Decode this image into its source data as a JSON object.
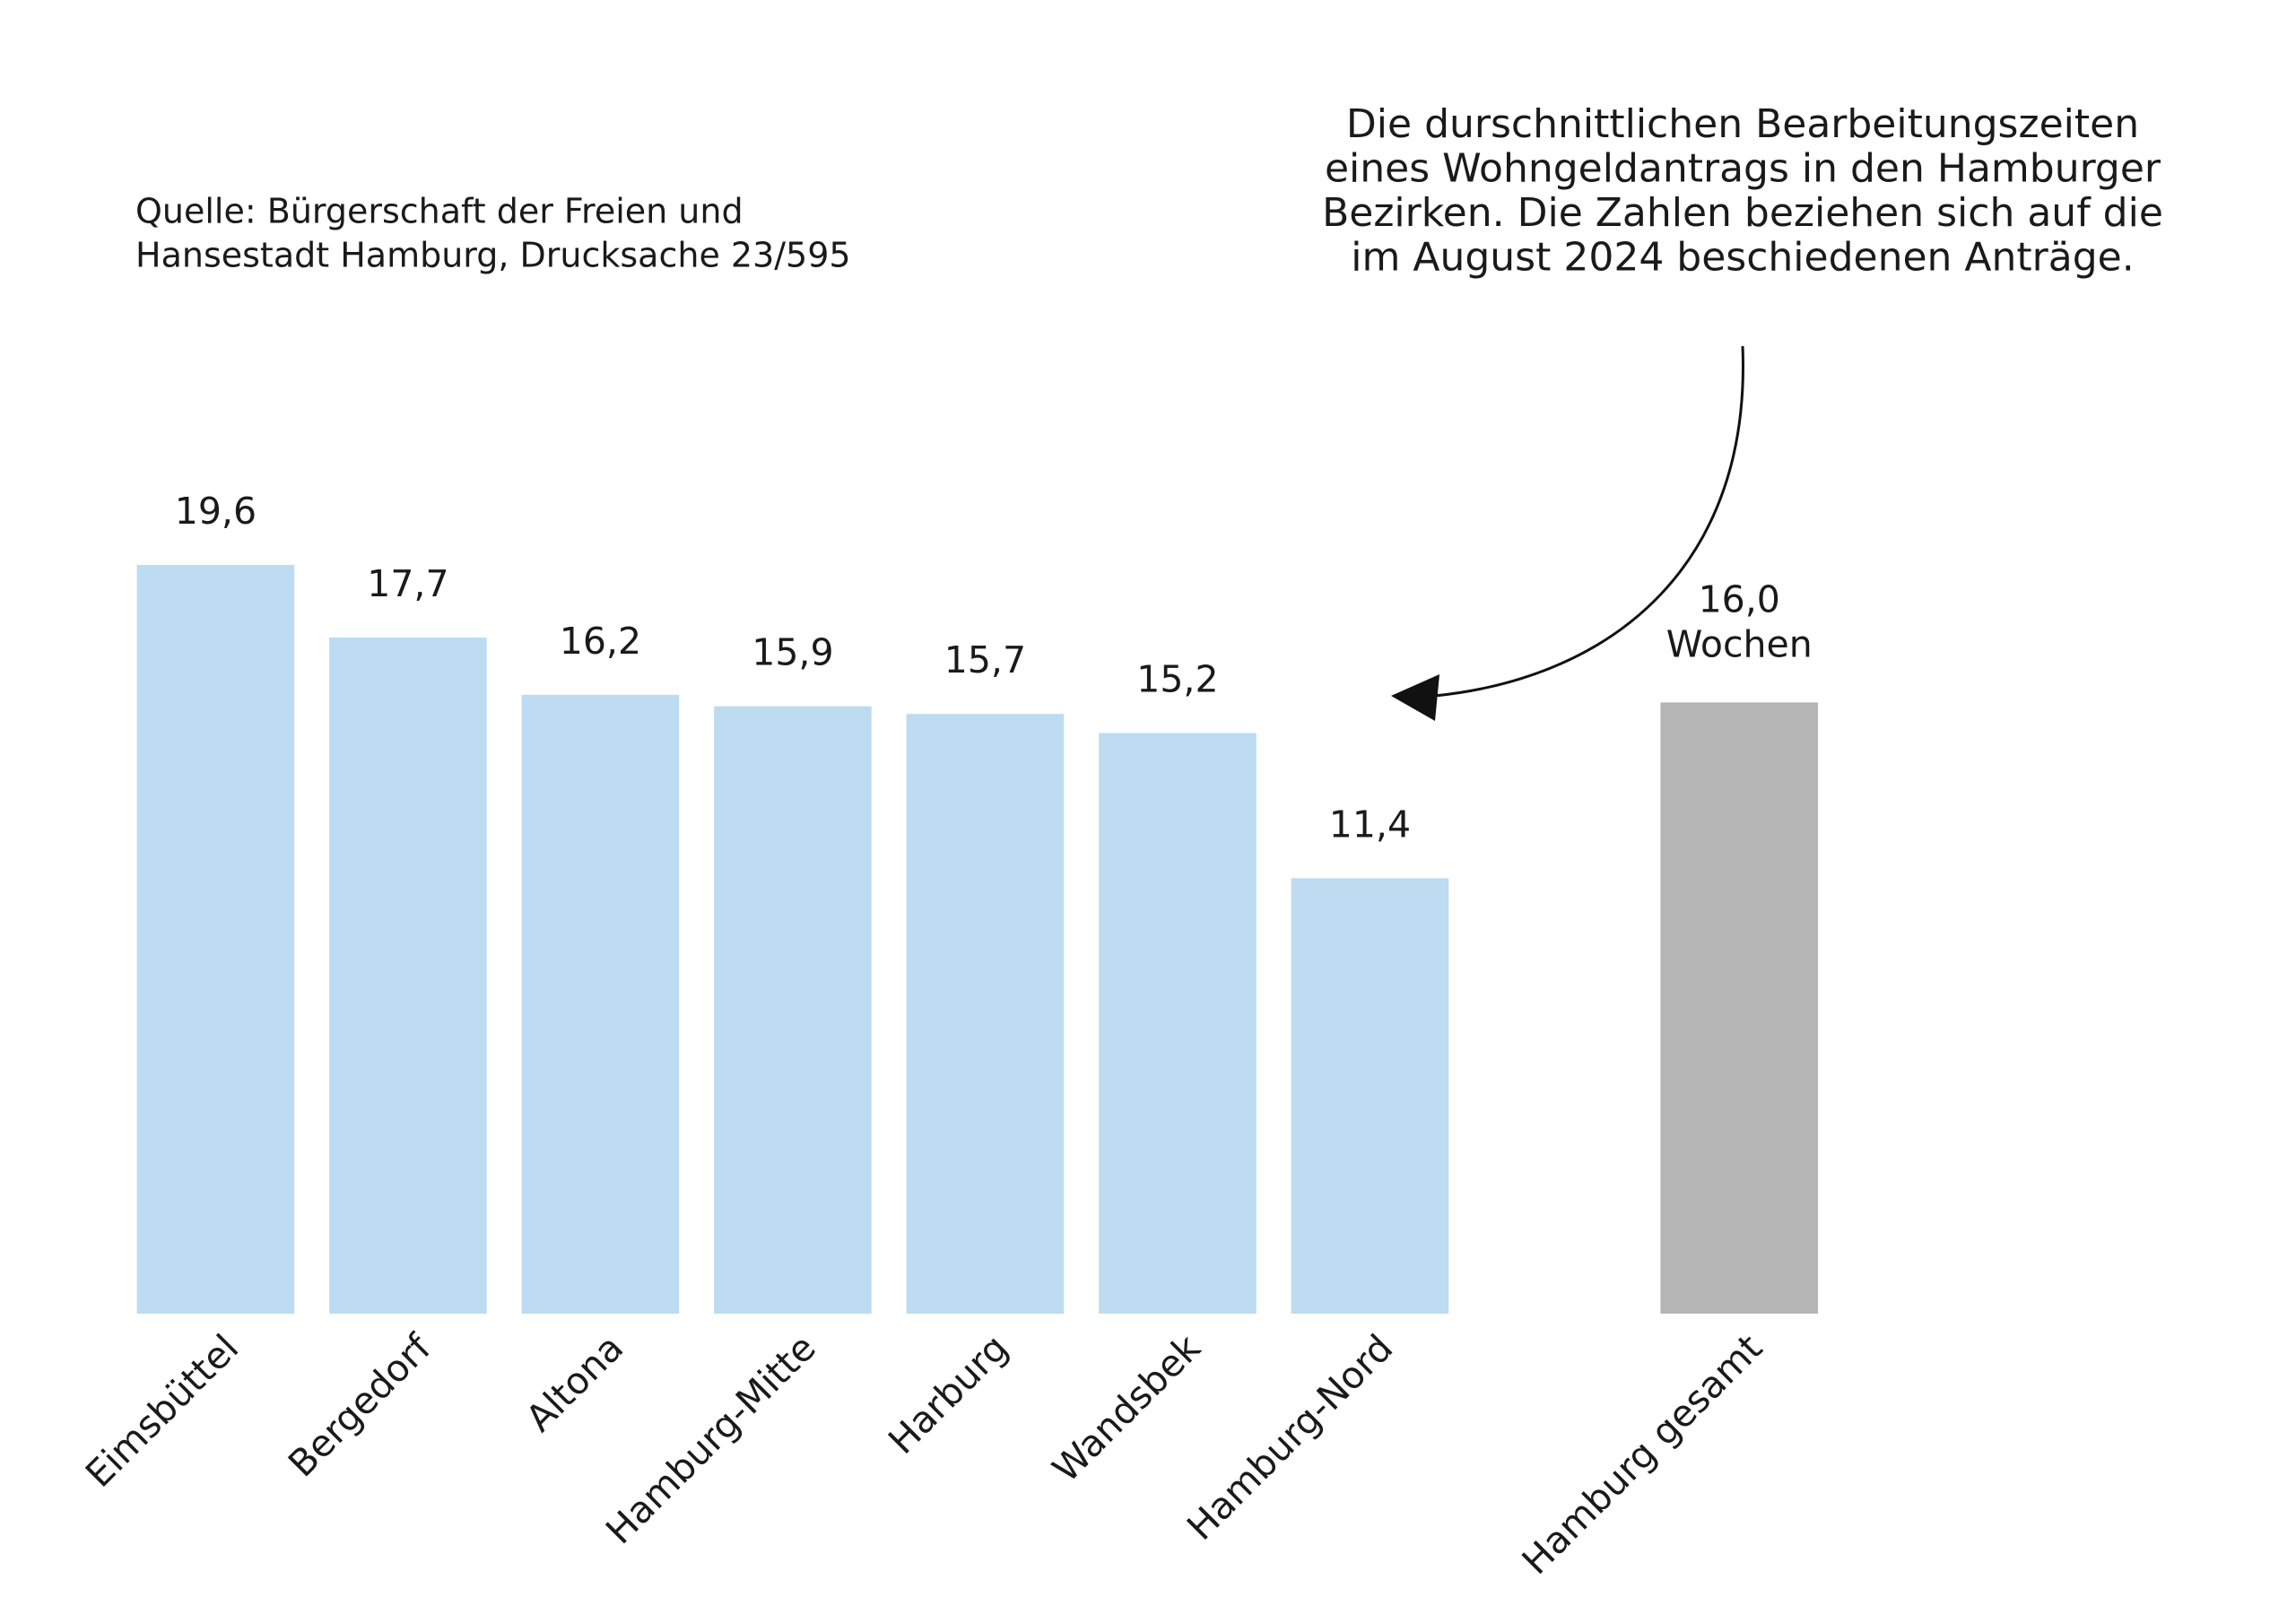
{
  "chart_data": {
    "type": "bar",
    "source": [
      "Quelle: Bürgerschaft der Freien und",
      "Hansestadt Hamburg, Drucksache 23/595"
    ],
    "annotation": [
      "Die durschnittlichen Bearbeitungszeiten",
      "eines Wohngeldantrags in den Hamburger",
      "Bezirken. Die Zahlen beziehen sich auf die",
      "im August 2024 beschiedenen Anträge."
    ],
    "unit_label": "Wochen",
    "categories": [
      "Eimsbüttel",
      "Bergedorf",
      "Altona",
      "Hamburg-Mitte",
      "Harburg",
      "Wandsbek",
      "Hamburg-Nord",
      "Hamburg gesamt"
    ],
    "values": [
      19.6,
      17.7,
      16.2,
      15.9,
      15.7,
      15.2,
      11.4,
      16.0
    ],
    "value_labels": [
      "19,6",
      "17,7",
      "16,2",
      "15,9",
      "15,7",
      "15,2",
      "11,4",
      "16,0"
    ],
    "colors": [
      "#bddcf2",
      "#bddcf2",
      "#bddcf2",
      "#bddcf2",
      "#bddcf2",
      "#bddcf2",
      "#bddcf2",
      "#b5b5b6"
    ],
    "ylim": [
      0,
      20
    ]
  }
}
